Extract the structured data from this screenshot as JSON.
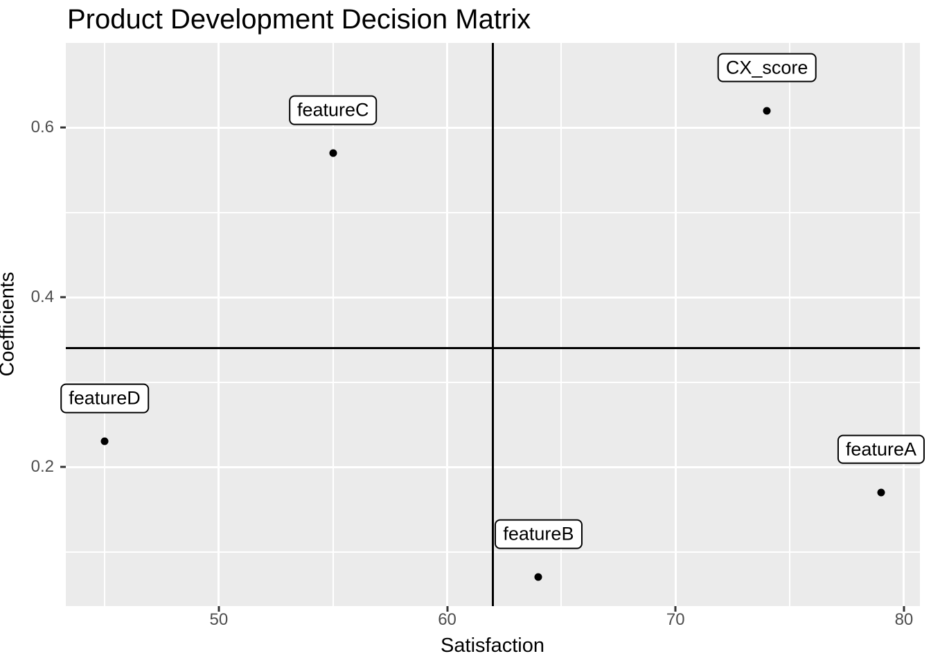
{
  "chart_data": {
    "type": "scatter",
    "title": "Product Development Decision Matrix",
    "xlabel": "Satisfaction",
    "ylabel": "Coefficients",
    "xlim": [
      43.3,
      80.7
    ],
    "ylim": [
      0.036,
      0.7
    ],
    "x_ticks": [
      50,
      60,
      70,
      80
    ],
    "x_tick_labels": [
      "50",
      "60",
      "70",
      "80"
    ],
    "y_ticks": [
      0.2,
      0.4,
      0.6
    ],
    "y_tick_labels": [
      "0.2",
      "0.4",
      "0.6"
    ],
    "x_minor_gridlines": [
      45,
      55,
      65,
      75
    ],
    "y_minor_gridlines": [
      0.1,
      0.3,
      0.5
    ],
    "grid": true,
    "legend": false,
    "points": [
      {
        "label": "CX_score",
        "x": 74,
        "y": 0.62
      },
      {
        "label": "featureA",
        "x": 79,
        "y": 0.17
      },
      {
        "label": "featureB",
        "x": 64,
        "y": 0.07
      },
      {
        "label": "featureC",
        "x": 55,
        "y": 0.57
      },
      {
        "label": "featureD",
        "x": 45,
        "y": 0.23
      }
    ],
    "reference_lines": {
      "vline_x": 62,
      "hline_y": 0.34
    },
    "colors": {
      "panel_background": "#EBEBEB",
      "gridline": "#FFFFFF",
      "point": "#000000",
      "reference_line": "#000000",
      "tick_label": "#4D4D4D",
      "label_box_fill": "#FFFFFF",
      "label_box_border": "#000000",
      "title": "#000000"
    }
  }
}
